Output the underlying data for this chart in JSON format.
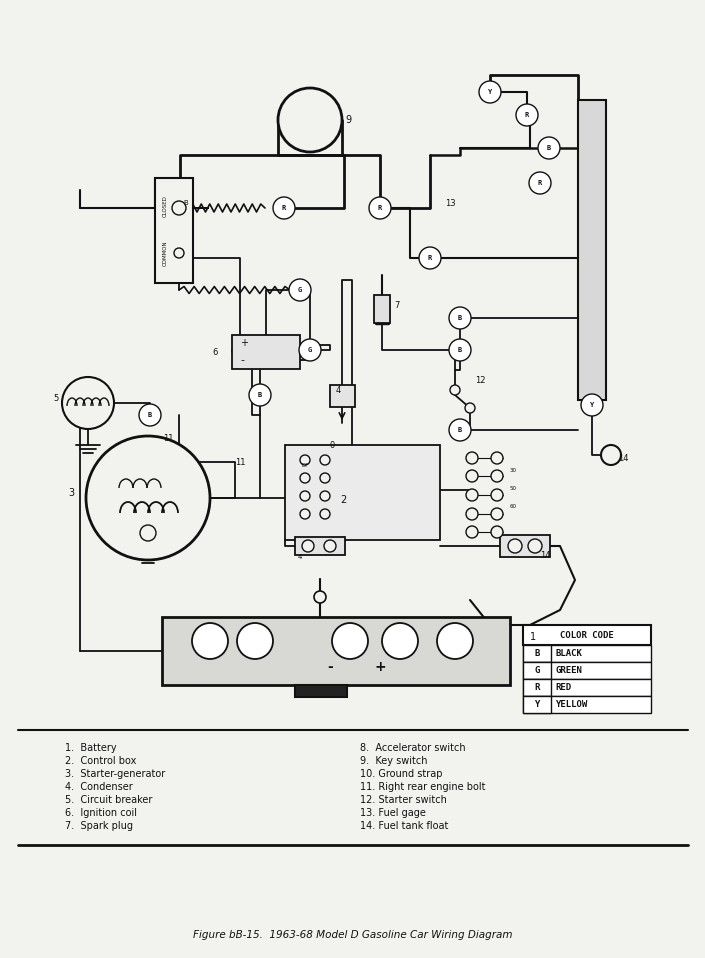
{
  "title": "Figure bB-15.  1963-68 Model D Gasoline Car Wiring Diagram",
  "bg": "#f2f2ee",
  "lc": "#111111",
  "fig_w": 7.05,
  "fig_h": 9.58,
  "dpi": 100,
  "legend_col1": [
    "1.  Battery",
    "2.  Control box",
    "3.  Starter-generator",
    "4.  Condenser",
    "5.  Circuit breaker",
    "6.  Ignition coil",
    "7.  Spark plug"
  ],
  "legend_col2": [
    "8.  Accelerator switch",
    "9.  Key switch",
    "10. Ground strap",
    "11. Right rear engine bolt",
    "12. Starter switch",
    "13. Fuel gage",
    "14. Fuel tank float"
  ],
  "color_rows": [
    [
      "B",
      "BLACK"
    ],
    [
      "G",
      "GREEN"
    ],
    [
      "R",
      "RED"
    ],
    [
      "Y",
      "YELLOW"
    ]
  ]
}
